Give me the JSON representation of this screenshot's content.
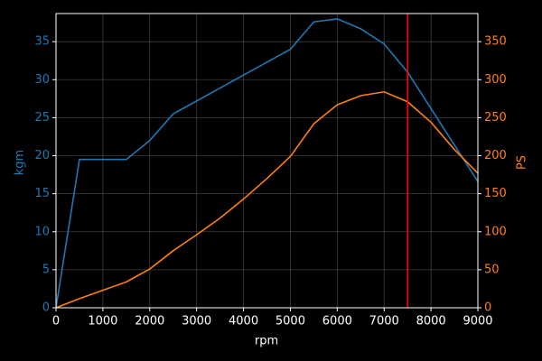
{
  "chart_data": {
    "type": "line",
    "x_label": "rpm",
    "y_label": "kgm",
    "y2_label": "PS",
    "x": [
      0,
      500,
      1000,
      1500,
      2000,
      2500,
      3000,
      3500,
      4000,
      4500,
      5000,
      5500,
      6000,
      6500,
      7000,
      7500,
      8000,
      8500,
      9000
    ],
    "series": [
      {
        "color": "#1f77b4",
        "axis": "y",
        "values": [
          0,
          19.5,
          19.5,
          19.5,
          22,
          25.5,
          27.2,
          28.9,
          30.6,
          32.3,
          34,
          37.6,
          38,
          36.7,
          34.7,
          31,
          26.2,
          21.4,
          16.6
        ]
      },
      {
        "color": "#ff7f0e",
        "axis": "y2",
        "values": [
          0,
          12,
          23,
          34,
          51,
          75,
          96,
          118,
          143,
          170,
          199,
          242,
          267,
          279,
          284,
          271,
          244,
          208,
          177
        ]
      }
    ],
    "vline": {
      "x": 7500,
      "color": "#ff0000"
    },
    "xlim": [
      0,
      9000
    ],
    "xticks": [
      0,
      1000,
      2000,
      3000,
      4000,
      5000,
      6000,
      7000,
      8000,
      9000
    ],
    "ylim": [
      0,
      38.7
    ],
    "yticks": [
      0,
      5,
      10,
      15,
      20,
      25,
      30,
      35
    ],
    "y2lim": [
      0,
      387
    ],
    "y2ticks": [
      0,
      50,
      100,
      150,
      200,
      250,
      300,
      350
    ],
    "grid": true
  }
}
